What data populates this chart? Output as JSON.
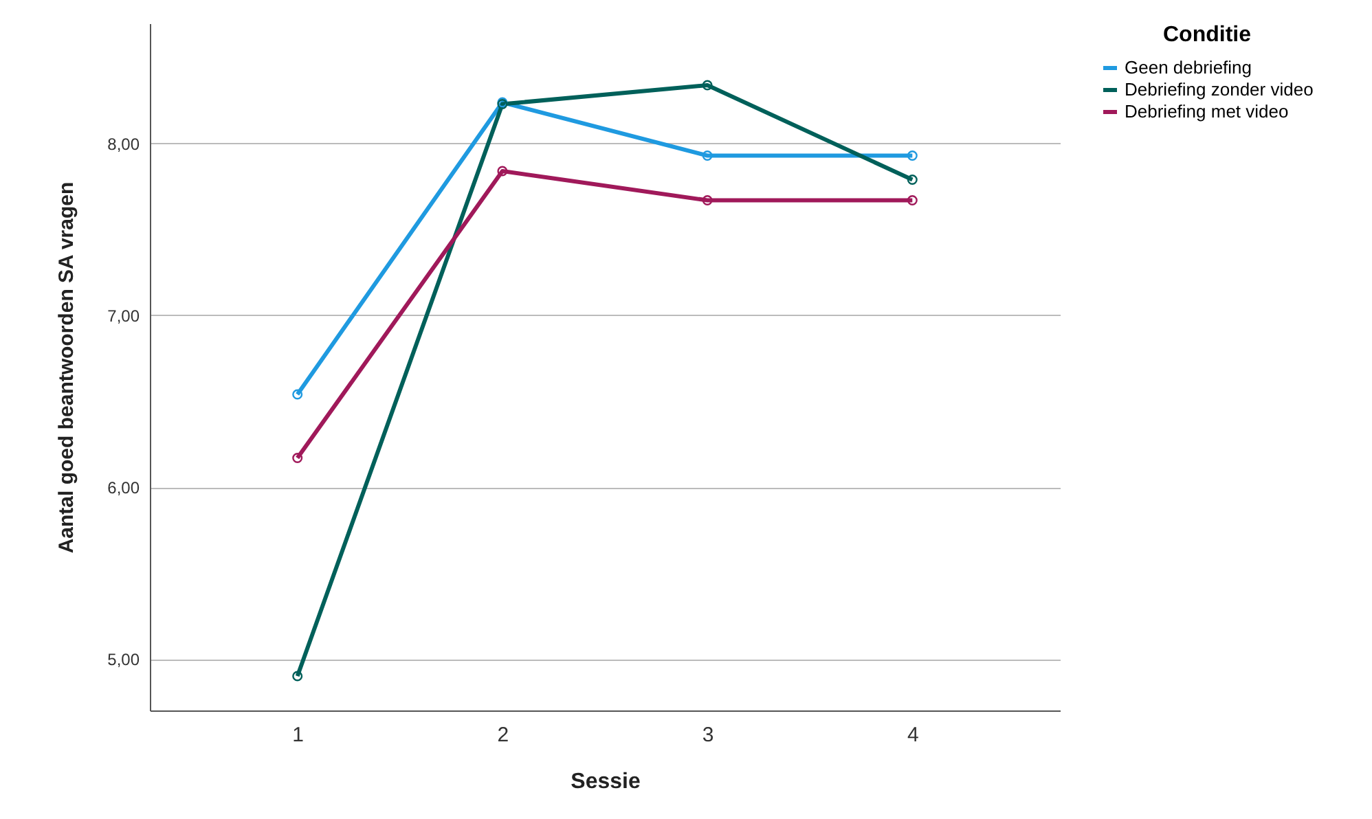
{
  "chart_data": {
    "type": "line",
    "xlabel": "Sessie",
    "ylabel": "Aantal goed beantwoorden SA vragen",
    "legend_title": "Conditie",
    "categories": [
      "1",
      "2",
      "3",
      "4"
    ],
    "series": [
      {
        "name": "Geen debriefing",
        "color": "#1f9ae0",
        "values": [
          6.54,
          8.24,
          7.93,
          7.93
        ]
      },
      {
        "name": "Debriefing zonder video",
        "color": "#00605a",
        "values": [
          4.9,
          8.23,
          8.34,
          7.79
        ]
      },
      {
        "name": "Debriefing met video",
        "color": "#a0195a",
        "values": [
          6.17,
          7.84,
          7.67,
          7.67
        ]
      }
    ],
    "ylim": [
      4.7,
      8.7
    ],
    "yticks": [
      {
        "value": 5,
        "label": "5,00"
      },
      {
        "value": 6,
        "label": "6,00"
      },
      {
        "value": 7,
        "label": "7,00"
      },
      {
        "value": 8,
        "label": "8,00"
      }
    ],
    "grid": "y",
    "legend": "top right",
    "marker": "circle",
    "line_style": "solid"
  }
}
